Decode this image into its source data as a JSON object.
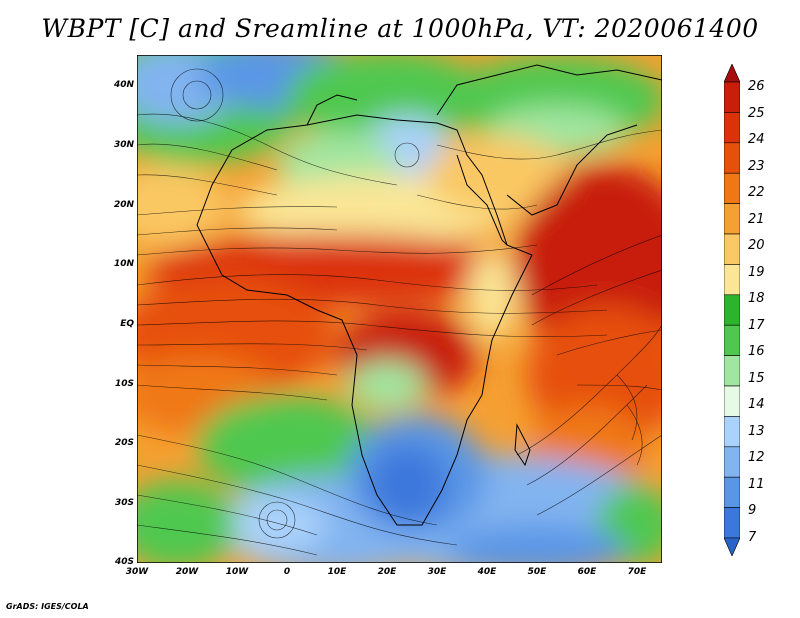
{
  "title": "WBPT [C] and Sreamline at 1000hPa, VT: 2020061400",
  "credit": "GrADS: IGES/COLA",
  "map": {
    "lat_labels": [
      "40N",
      "30N",
      "20N",
      "10N",
      "EQ",
      "10S",
      "20S",
      "30S",
      "40S"
    ],
    "lon_labels": [
      "30W",
      "20W",
      "10W",
      "0",
      "10E",
      "20E",
      "30E",
      "40E",
      "50E",
      "60E",
      "70E"
    ]
  },
  "colorbar": {
    "levels": [
      "26",
      "25",
      "24",
      "23",
      "22",
      "21",
      "20",
      "19",
      "18",
      "17",
      "16",
      "15",
      "14",
      "13",
      "12",
      "11",
      "9",
      "7"
    ],
    "colors": [
      "#a50f0f",
      "#c81e0a",
      "#dc320a",
      "#e6500a",
      "#f07814",
      "#f5a032",
      "#fac864",
      "#fae696",
      "#2db42d",
      "#50c850",
      "#a0e6a0",
      "#e6fae6",
      "#aad2fa",
      "#82b4f0",
      "#5a96e6",
      "#3c78dc",
      "#2864c8"
    ]
  },
  "chart_data": {
    "type": "heatmap",
    "title": "WBPT [C] and Sreamline at 1000hPa, VT: 2020061400",
    "x_ticks": [
      "30W",
      "20W",
      "10W",
      "0",
      "10E",
      "20E",
      "30E",
      "40E",
      "50E",
      "60E",
      "70E"
    ],
    "y_ticks": [
      "40N",
      "30N",
      "20N",
      "10N",
      "EQ",
      "10S",
      "20S",
      "30S",
      "40S"
    ],
    "lon_range": [
      -30,
      75
    ],
    "lat_range": [
      -40,
      45
    ],
    "color_levels": [
      7,
      9,
      11,
      12,
      13,
      14,
      15,
      16,
      17,
      18,
      19,
      20,
      21,
      22,
      23,
      24,
      25,
      26
    ]
  }
}
